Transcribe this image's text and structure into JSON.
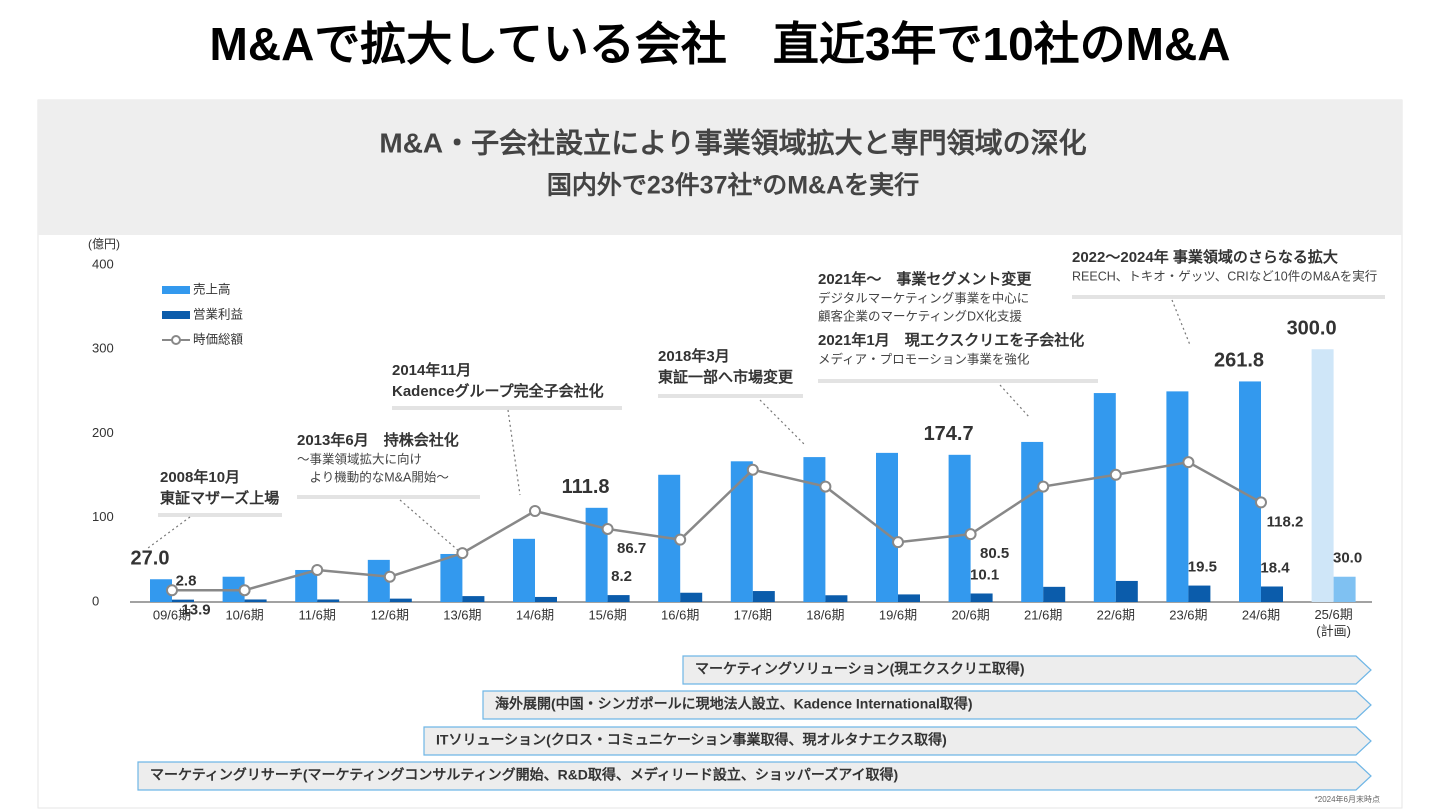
{
  "header": {
    "title": "M&Aで拡大している会社　直近3年で10社のM&A"
  },
  "banner": {
    "line1": "M&A・子会社設立により事業領域拡大と専門領域の深化",
    "line2": "国内外で23件37社*のM&Aを実行"
  },
  "chart_data": {
    "type": "bar",
    "y_label": "(億円)",
    "ylim": [
      0,
      400
    ],
    "yticks": [
      0,
      100,
      200,
      300,
      400
    ],
    "categories": [
      "09/6期",
      "10/6期",
      "11/6期",
      "12/6期",
      "13/6期",
      "14/6期",
      "15/6期",
      "16/6期",
      "17/6期",
      "18/6期",
      "19/6期",
      "20/6期",
      "21/6期",
      "22/6期",
      "23/6期",
      "24/6期",
      "25/6期\n(計画)"
    ],
    "series": [
      {
        "name": "売上高",
        "type": "bar",
        "color": "#3399ee",
        "plan_color": "#cfe6f8",
        "values": [
          27.0,
          30,
          38,
          50,
          57,
          75,
          111.8,
          151,
          167,
          172,
          177,
          174.7,
          190,
          248,
          250,
          261.8,
          300.0
        ],
        "value_labels": [
          "27.0",
          null,
          null,
          null,
          null,
          null,
          "111.8",
          null,
          null,
          null,
          null,
          "174.7",
          null,
          null,
          null,
          "261.8",
          "300.0"
        ]
      },
      {
        "name": "営業利益",
        "type": "bar",
        "color": "#0b5cab",
        "plan_color": "#7fc1f2",
        "values": [
          2.8,
          3,
          3,
          4,
          7,
          6,
          8.2,
          11,
          13,
          8,
          9,
          10.1,
          18,
          25,
          19.5,
          18.4,
          30.0
        ],
        "value_labels": [
          "2.8",
          null,
          null,
          null,
          null,
          null,
          "8.2",
          null,
          null,
          null,
          null,
          "10.1",
          null,
          null,
          "19.5",
          "18.4",
          "30.0"
        ]
      },
      {
        "name": "時価総額",
        "type": "line",
        "color": "#888888",
        "values": [
          13.9,
          14,
          38,
          30,
          58,
          108,
          86.7,
          74,
          157,
          137,
          71,
          80.5,
          137,
          151,
          166,
          118.2,
          null
        ],
        "value_labels": [
          "13.9",
          null,
          null,
          null,
          null,
          null,
          "86.7",
          null,
          null,
          null,
          null,
          "80.5",
          null,
          null,
          null,
          "118.2",
          null
        ]
      }
    ],
    "annotations": [
      {
        "heading": [
          "2008年10月",
          "東証マザーズ上場"
        ],
        "detail": []
      },
      {
        "heading": [
          "2013年6月　持株会社化"
        ],
        "detail": [
          "～事業領域拡大に向け",
          "　より機動的なM&A開始～"
        ]
      },
      {
        "heading": [
          "2014年11月",
          "Kadenceグループ完全子会社化"
        ],
        "detail": []
      },
      {
        "heading": [
          "2018年3月",
          "東証一部へ市場変更"
        ],
        "detail": []
      },
      {
        "heading": [
          "2021年～　事業セグメント変更"
        ],
        "detail": [
          "デジタルマーケティング事業を中心に",
          "顧客企業のマーケティングDX化支援"
        ]
      },
      {
        "heading": [
          "2021年1月　現エクスクリエを子会社化"
        ],
        "detail": [
          "メディア・プロモーション事業を強化"
        ]
      },
      {
        "heading": [
          "2022～2024年 事業領域のさらなる拡大"
        ],
        "detail": [
          "REECH、トキオ・ゲッツ、CRIなど10件のM&Aを実行"
        ]
      }
    ]
  },
  "timeline": [
    "マーケティングソリューション(現エクスクリエ取得)",
    "海外展開(中国・シンガポールに現地法人設立、Kadence International取得)",
    "ITソリューション(クロス・コミュニケーション事業取得、現オルタナエクス取得)",
    "マーケティングリサーチ(マーケティングコンサルティング開始、R&D取得、メディリード設立、ショッパーズアイ取得)"
  ],
  "footnote": "*2024年6月末時点"
}
